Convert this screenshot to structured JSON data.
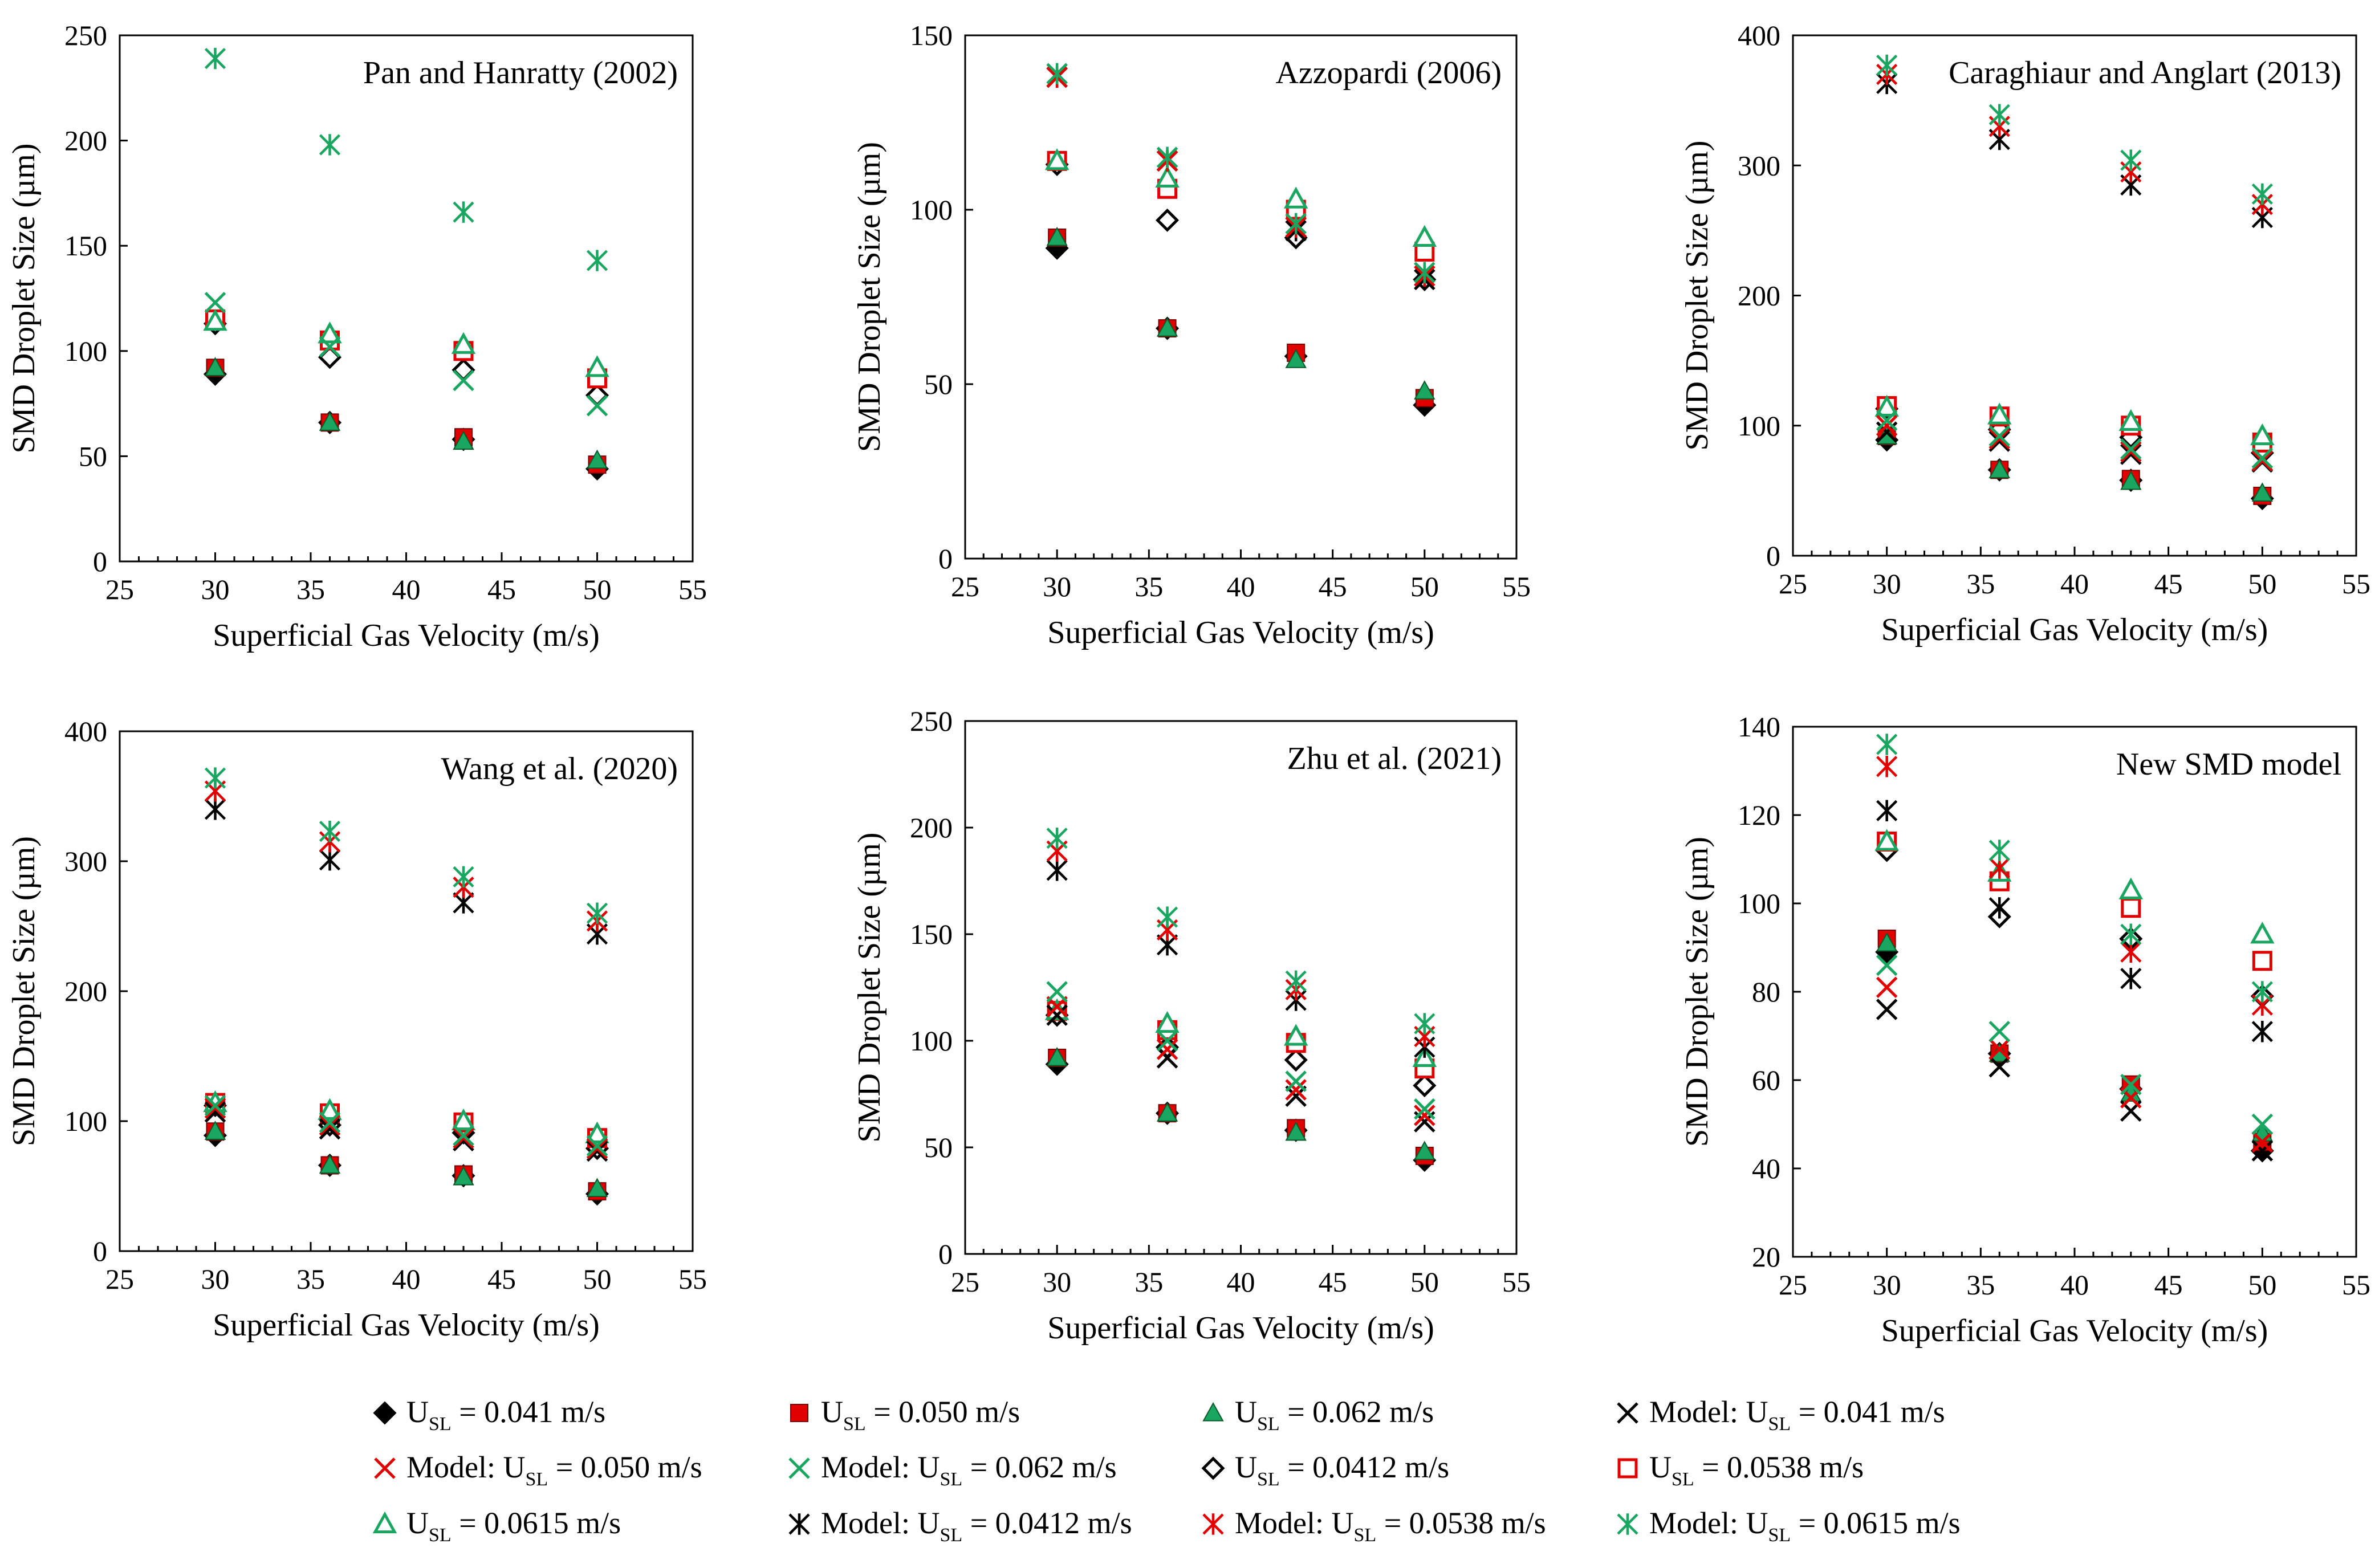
{
  "figure": {
    "xlabel": "Superficial Gas Velocity (m/s)",
    "ylabel": "SMD Droplet Size (µm)"
  },
  "colors": {
    "black": "#000000",
    "red": "#e00000",
    "green": "#1aa660",
    "dark_red": "#cc0000",
    "dark_green": "#0a8a3a"
  },
  "series_styles": [
    {
      "key": "e041",
      "marker": "diamond-filled",
      "color": "#000000"
    },
    {
      "key": "e050",
      "marker": "square-filled",
      "color": "#e00000"
    },
    {
      "key": "e062",
      "marker": "triangle-filled",
      "color": "#1aa660"
    },
    {
      "key": "m041",
      "marker": "x",
      "color": "#000000"
    },
    {
      "key": "m050",
      "marker": "x",
      "color": "#e00000"
    },
    {
      "key": "m062",
      "marker": "x",
      "color": "#1aa660"
    },
    {
      "key": "e0412",
      "marker": "diamond-open",
      "color": "#000000"
    },
    {
      "key": "e0538",
      "marker": "square-open",
      "color": "#e00000"
    },
    {
      "key": "e0615",
      "marker": "triangle-open",
      "color": "#1aa660"
    },
    {
      "key": "m0412",
      "marker": "asterisk",
      "color": "#000000"
    },
    {
      "key": "m0538",
      "marker": "asterisk",
      "color": "#e00000"
    },
    {
      "key": "m0615",
      "marker": "asterisk",
      "color": "#1aa660"
    }
  ],
  "legend": [
    {
      "key": "e041",
      "prefix": "U",
      "sub": "SL",
      "suffix": " = 0.041 m/s"
    },
    {
      "key": "e050",
      "prefix": "U",
      "sub": "SL",
      "suffix": " = 0.050 m/s"
    },
    {
      "key": "e062",
      "prefix": "U",
      "sub": "SL",
      "suffix": " = 0.062 m/s"
    },
    {
      "key": "m041",
      "prefix": "Model: U",
      "sub": "SL",
      "suffix": " = 0.041 m/s"
    },
    {
      "key": "m050",
      "prefix": "Model: U",
      "sub": "SL",
      "suffix": " = 0.050 m/s"
    },
    {
      "key": "m062",
      "prefix": "Model: U",
      "sub": "SL",
      "suffix": " = 0.062 m/s"
    },
    {
      "key": "e0412",
      "prefix": "U",
      "sub": "SL",
      "suffix": " = 0.0412 m/s"
    },
    {
      "key": "e0538",
      "prefix": "U",
      "sub": "SL",
      "suffix": " = 0.0538 m/s"
    },
    {
      "key": "e0615",
      "prefix": "U",
      "sub": "SL",
      "suffix": " = 0.0615 m/s"
    },
    {
      "key": "m0412",
      "prefix": "Model: U",
      "sub": "SL",
      "suffix": " = 0.0412 m/s"
    },
    {
      "key": "m0538",
      "prefix": "Model: U",
      "sub": "SL",
      "suffix": " = 0.0538 m/s"
    },
    {
      "key": "m0615",
      "prefix": "Model: U",
      "sub": "SL",
      "suffix": " = 0.0615 m/s"
    }
  ],
  "chart_data": [
    {
      "type": "scatter",
      "title": "Pan and Hanratty (2002)",
      "xlabel": "Superficial Gas Velocity (m/s)",
      "ylabel": "SMD Droplet Size (µm)",
      "xlim": [
        25,
        55
      ],
      "ylim": [
        0,
        250
      ],
      "xticks": [
        25,
        30,
        35,
        40,
        45,
        50,
        55
      ],
      "yticks": [
        0,
        50,
        100,
        150,
        200,
        250
      ],
      "x": [
        30,
        36,
        43,
        50
      ],
      "series": [
        {
          "key": "e041",
          "values": [
            89,
            66,
            58,
            44
          ]
        },
        {
          "key": "e050",
          "values": [
            92,
            66,
            59,
            46
          ]
        },
        {
          "key": "e062",
          "values": [
            92,
            66,
            57,
            48
          ]
        },
        {
          "key": "e0412",
          "values": [
            113,
            97,
            91,
            79
          ]
        },
        {
          "key": "e0538",
          "values": [
            115,
            105,
            100,
            87
          ]
        },
        {
          "key": "e0615",
          "values": [
            114,
            108,
            103,
            92
          ]
        },
        {
          "key": "m062",
          "values": [
            123,
            102,
            86,
            74
          ]
        },
        {
          "key": "m0615",
          "values": [
            239,
            198,
            166,
            143
          ]
        }
      ]
    },
    {
      "type": "scatter",
      "title": "Azzopardi (2006)",
      "xlabel": "Superficial Gas Velocity (m/s)",
      "ylabel": "SMD Droplet Size (µm)",
      "xlim": [
        25,
        55
      ],
      "ylim": [
        0,
        150
      ],
      "xticks": [
        25,
        30,
        35,
        40,
        45,
        50,
        55
      ],
      "yticks": [
        0,
        50,
        100,
        150
      ],
      "x": [
        30,
        36,
        43,
        50
      ],
      "series": [
        {
          "key": "e041",
          "values": [
            89,
            66,
            58,
            44
          ]
        },
        {
          "key": "e050",
          "values": [
            92,
            66,
            59,
            46
          ]
        },
        {
          "key": "e062",
          "values": [
            92,
            66,
            57,
            48
          ]
        },
        {
          "key": "e0412",
          "values": [
            113,
            97,
            92,
            80
          ]
        },
        {
          "key": "e0538",
          "values": [
            114,
            106,
            100,
            88
          ]
        },
        {
          "key": "e0615",
          "values": [
            114,
            109,
            103,
            92
          ]
        },
        {
          "key": "m041",
          "values": [
            138,
            114,
            94,
            80
          ]
        },
        {
          "key": "m050",
          "values": [
            138,
            114,
            95,
            81
          ]
        },
        {
          "key": "m062",
          "values": [
            139,
            115,
            96,
            82
          ]
        },
        {
          "key": "m0412",
          "values": [
            138,
            114,
            94,
            80
          ]
        },
        {
          "key": "m0538",
          "values": [
            138,
            114,
            95,
            81
          ]
        },
        {
          "key": "m0615",
          "values": [
            139,
            115,
            96,
            82
          ]
        }
      ]
    },
    {
      "type": "scatter",
      "title": "Caraghiaur and Anglart (2013)",
      "xlabel": "Superficial Gas Velocity (m/s)",
      "ylabel": "SMD Droplet Size (µm)",
      "xlim": [
        25,
        55
      ],
      "ylim": [
        0,
        400
      ],
      "xticks": [
        25,
        30,
        35,
        40,
        45,
        50,
        55
      ],
      "yticks": [
        0,
        100,
        200,
        300,
        400
      ],
      "x": [
        30,
        36,
        43,
        50
      ],
      "series": [
        {
          "key": "e041",
          "values": [
            89,
            66,
            58,
            44
          ]
        },
        {
          "key": "e050",
          "values": [
            92,
            66,
            59,
            46
          ]
        },
        {
          "key": "e062",
          "values": [
            92,
            66,
            57,
            48
          ]
        },
        {
          "key": "e0412",
          "values": [
            113,
            97,
            91,
            79
          ]
        },
        {
          "key": "e0538",
          "values": [
            115,
            107,
            100,
            87
          ]
        },
        {
          "key": "e0615",
          "values": [
            114,
            108,
            103,
            92
          ]
        },
        {
          "key": "m041",
          "values": [
            95,
            88,
            78,
            72
          ]
        },
        {
          "key": "m050",
          "values": [
            100,
            90,
            80,
            73
          ]
        },
        {
          "key": "m062",
          "values": [
            104,
            92,
            82,
            75
          ]
        },
        {
          "key": "m0412",
          "values": [
            363,
            320,
            285,
            260
          ]
        },
        {
          "key": "m0538",
          "values": [
            370,
            330,
            295,
            270
          ]
        },
        {
          "key": "m0615",
          "values": [
            377,
            339,
            304,
            278
          ]
        }
      ]
    },
    {
      "type": "scatter",
      "title": "Wang et al. (2020)",
      "xlabel": "Superficial Gas Velocity (m/s)",
      "ylabel": "SMD Droplet Size (µm)",
      "xlim": [
        25,
        55
      ],
      "ylim": [
        0,
        400
      ],
      "xticks": [
        25,
        30,
        35,
        40,
        45,
        50,
        55
      ],
      "yticks": [
        0,
        100,
        200,
        300,
        400
      ],
      "x": [
        30,
        36,
        43,
        50
      ],
      "series": [
        {
          "key": "e041",
          "values": [
            89,
            66,
            58,
            44
          ]
        },
        {
          "key": "e050",
          "values": [
            92,
            66,
            59,
            46
          ]
        },
        {
          "key": "e062",
          "values": [
            92,
            66,
            57,
            48
          ]
        },
        {
          "key": "e0412",
          "values": [
            112,
            97,
            91,
            79
          ]
        },
        {
          "key": "e0538",
          "values": [
            114,
            106,
            99,
            87
          ]
        },
        {
          "key": "e0615",
          "values": [
            114,
            108,
            100,
            90
          ]
        },
        {
          "key": "m041",
          "values": [
            107,
            94,
            85,
            77
          ]
        },
        {
          "key": "m050",
          "values": [
            110,
            97,
            87,
            79
          ]
        },
        {
          "key": "m062",
          "values": [
            112,
            99,
            89,
            81
          ]
        },
        {
          "key": "m0412",
          "values": [
            340,
            301,
            268,
            244
          ]
        },
        {
          "key": "m0538",
          "values": [
            354,
            315,
            280,
            254
          ]
        },
        {
          "key": "m0615",
          "values": [
            364,
            323,
            288,
            260
          ]
        }
      ]
    },
    {
      "type": "scatter",
      "title": "Zhu et al. (2021)",
      "xlabel": "Superficial Gas Velocity (m/s)",
      "ylabel": "SMD Droplet Size (µm)",
      "xlim": [
        25,
        55
      ],
      "ylim": [
        0,
        250
      ],
      "xticks": [
        25,
        30,
        35,
        40,
        45,
        50,
        55
      ],
      "yticks": [
        0,
        50,
        100,
        150,
        200,
        250
      ],
      "x": [
        30,
        36,
        43,
        50
      ],
      "series": [
        {
          "key": "e041",
          "values": [
            89,
            66,
            58,
            44
          ]
        },
        {
          "key": "e050",
          "values": [
            92,
            66,
            59,
            46
          ]
        },
        {
          "key": "e062",
          "values": [
            92,
            66,
            57,
            48
          ]
        },
        {
          "key": "e0412",
          "values": [
            112,
            97,
            91,
            79
          ]
        },
        {
          "key": "e0538",
          "values": [
            114,
            105,
            99,
            87
          ]
        },
        {
          "key": "e0615",
          "values": [
            114,
            108,
            102,
            92
          ]
        },
        {
          "key": "m041",
          "values": [
            112,
            92,
            74,
            62
          ]
        },
        {
          "key": "m050",
          "values": [
            116,
            96,
            77,
            65
          ]
        },
        {
          "key": "m062",
          "values": [
            123,
            100,
            81,
            68
          ]
        },
        {
          "key": "m0412",
          "values": [
            180,
            145,
            119,
            97
          ]
        },
        {
          "key": "m0538",
          "values": [
            189,
            152,
            124,
            102
          ]
        },
        {
          "key": "m0615",
          "values": [
            195,
            158,
            128,
            108
          ]
        }
      ]
    },
    {
      "type": "scatter",
      "title": "New SMD model",
      "xlabel": "Superficial Gas Velocity (m/s)",
      "ylabel": "SMD Droplet Size (µm)",
      "xlim": [
        25,
        55
      ],
      "ylim": [
        20,
        140
      ],
      "xticks": [
        25,
        30,
        35,
        40,
        45,
        50,
        55
      ],
      "yticks": [
        20,
        40,
        60,
        80,
        100,
        120,
        140
      ],
      "x": [
        30,
        36,
        43,
        50
      ],
      "series": [
        {
          "key": "e041",
          "values": [
            89,
            66,
            58,
            44
          ]
        },
        {
          "key": "e050",
          "values": [
            92,
            66,
            59,
            46
          ]
        },
        {
          "key": "e062",
          "values": [
            91,
            66,
            57,
            48
          ]
        },
        {
          "key": "e0412",
          "values": [
            112,
            97,
            92,
            79
          ]
        },
        {
          "key": "e0538",
          "values": [
            114,
            105,
            99,
            87
          ]
        },
        {
          "key": "e0615",
          "values": [
            114,
            107,
            103,
            93
          ]
        },
        {
          "key": "m041",
          "values": [
            76,
            63,
            53,
            44
          ]
        },
        {
          "key": "m050",
          "values": [
            81,
            67,
            56,
            46
          ]
        },
        {
          "key": "m062",
          "values": [
            86,
            71,
            59,
            50
          ]
        },
        {
          "key": "m0412",
          "values": [
            121,
            99,
            83,
            71
          ]
        },
        {
          "key": "m0538",
          "values": [
            131,
            108,
            89,
            77
          ]
        },
        {
          "key": "m0615",
          "values": [
            136,
            112,
            93,
            80
          ]
        }
      ]
    }
  ]
}
